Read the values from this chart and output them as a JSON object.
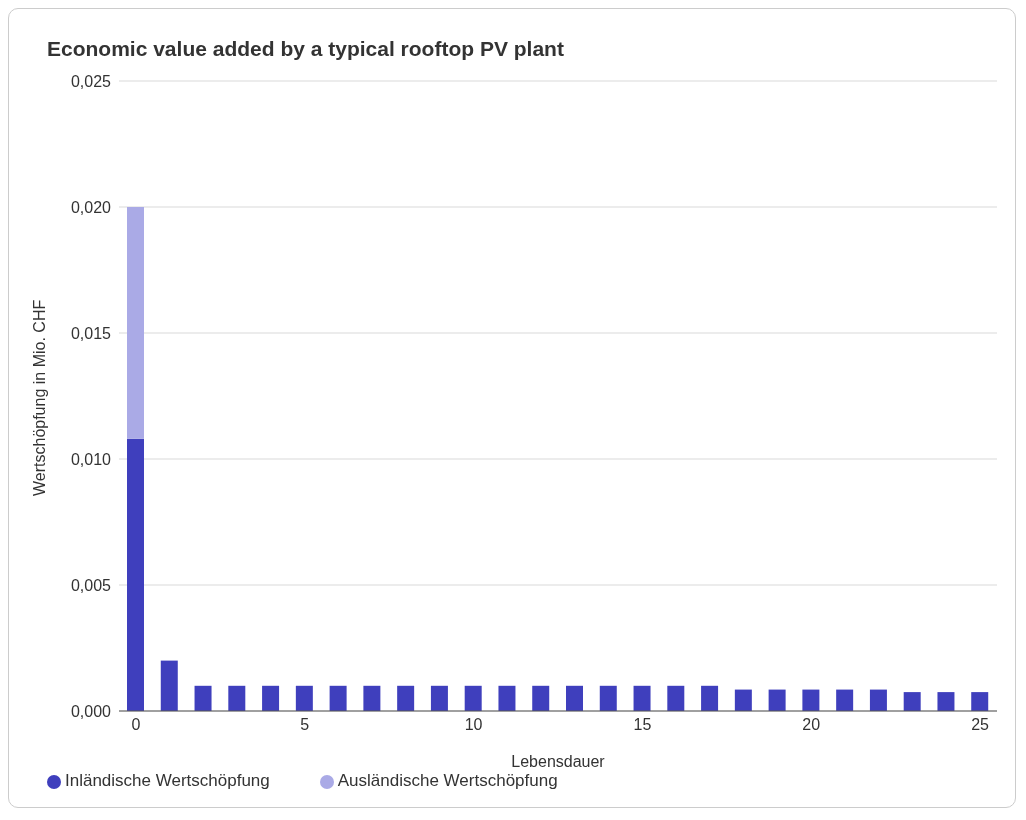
{
  "chart_data": {
    "type": "bar",
    "title": "Economic value added by a typical rooftop PV plant",
    "xlabel": "Lebensdauer",
    "ylabel": "Wertschöpfung in Mio. CHF",
    "x": [
      0,
      1,
      2,
      3,
      4,
      5,
      6,
      7,
      8,
      9,
      10,
      11,
      12,
      13,
      14,
      15,
      16,
      17,
      18,
      19,
      20,
      21,
      22,
      23,
      24,
      25
    ],
    "stacked": true,
    "series": [
      {
        "name": "Inländische Wertschöpfung",
        "color": "#3f3fbd",
        "values": [
          0.0108,
          0.002,
          0.001,
          0.001,
          0.001,
          0.001,
          0.001,
          0.001,
          0.001,
          0.001,
          0.001,
          0.001,
          0.001,
          0.001,
          0.001,
          0.001,
          0.001,
          0.001,
          0.00085,
          0.00085,
          0.00085,
          0.00085,
          0.00085,
          0.00075,
          0.00075,
          0.00075
        ]
      },
      {
        "name": "Ausländische Wertschöpfung",
        "color": "#aaaae6",
        "values": [
          0.0092,
          0,
          0,
          0,
          0,
          0,
          0,
          0,
          0,
          0,
          0,
          0,
          0,
          0,
          0,
          0,
          0,
          0,
          0,
          0,
          0,
          0,
          0,
          0,
          0,
          0
        ]
      }
    ],
    "xlim": [
      -0.5,
      25.5
    ],
    "xticks": [
      0,
      5,
      10,
      15,
      20,
      25
    ],
    "ylim": [
      0,
      0.025
    ],
    "yticks": [
      {
        "value": 0,
        "label": "0,000"
      },
      {
        "value": 0.005,
        "label": "0,005"
      },
      {
        "value": 0.01,
        "label": "0,010"
      },
      {
        "value": 0.015,
        "label": "0,015"
      },
      {
        "value": 0.02,
        "label": "0,020"
      },
      {
        "value": 0.025,
        "label": "0,025"
      }
    ],
    "grid": "y",
    "legend": "bottom left"
  }
}
